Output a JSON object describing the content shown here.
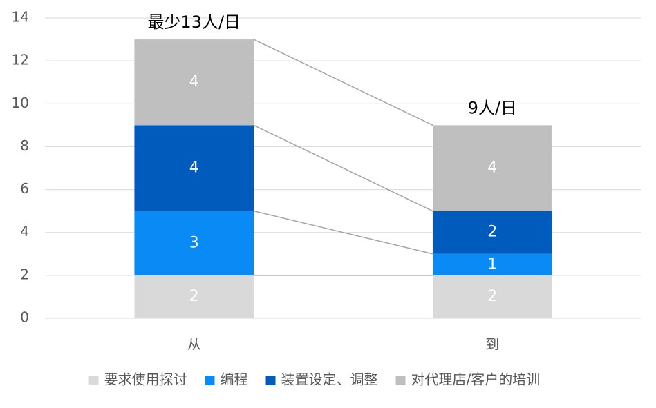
{
  "chart_data": {
    "type": "stacked_bar",
    "categories": [
      "从",
      "到"
    ],
    "annotations": [
      "最少13人/日",
      "9人/日"
    ],
    "series": [
      {
        "name": "要求使用探讨",
        "color": "#d9d9d9",
        "values": [
          2,
          2
        ]
      },
      {
        "name": "编程",
        "color": "#0a8af5",
        "values": [
          3,
          1
        ]
      },
      {
        "name": "装置设定、调整",
        "color": "#005bbd",
        "values": [
          4,
          2
        ]
      },
      {
        "name": "对代理店/客户的培训",
        "color": "#bfbfbf",
        "values": [
          4,
          4
        ]
      }
    ],
    "ylim": [
      0,
      14
    ],
    "yticks": [
      0,
      2,
      4,
      6,
      8,
      10,
      12,
      14
    ],
    "grid": true,
    "legend": "bottom"
  }
}
